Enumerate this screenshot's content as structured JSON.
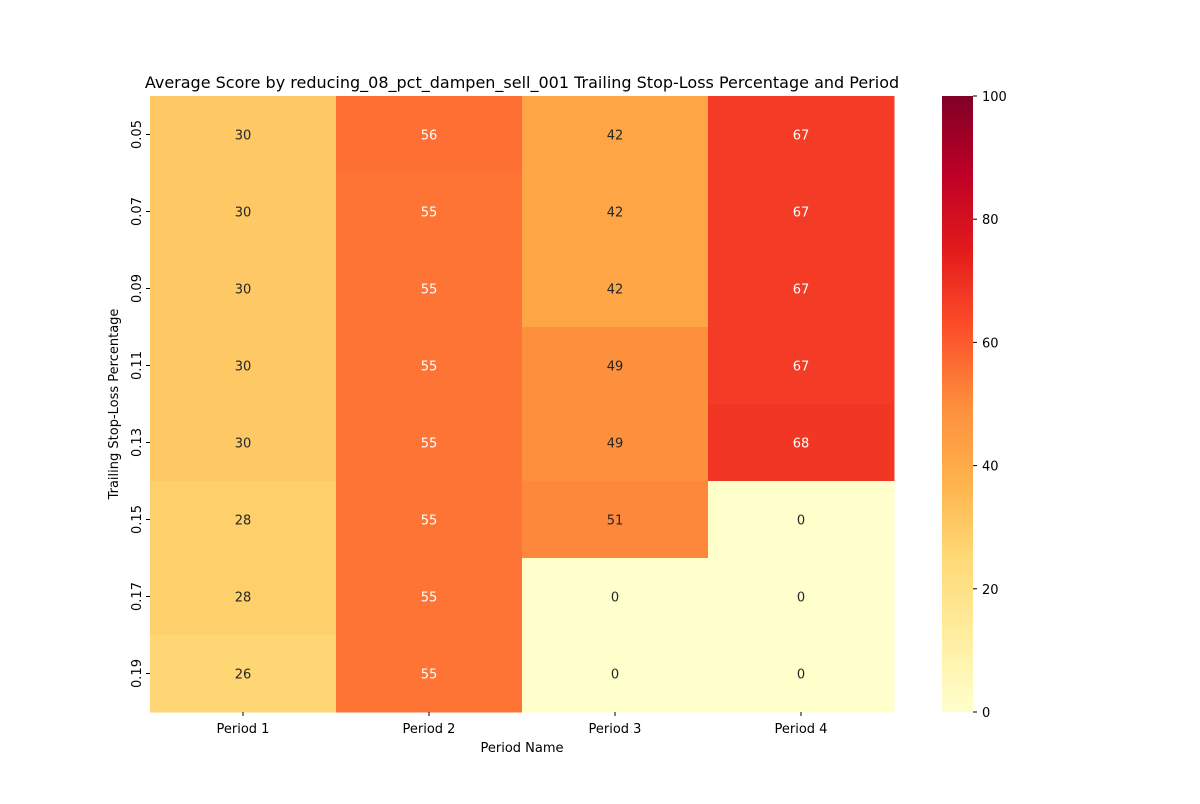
{
  "chart_data": {
    "type": "heatmap",
    "title": "Average Score by reducing_08_pct_dampen_sell_001 Trailing Stop-Loss Percentage and Period",
    "xlabel": "Period Name",
    "ylabel": "Trailing Stop-Loss Percentage",
    "x_categories": [
      "Period 1",
      "Period 2",
      "Period 3",
      "Period 4"
    ],
    "y_categories": [
      "0.05",
      "0.07",
      "0.09",
      "0.11",
      "0.13",
      "0.15",
      "0.17",
      "0.19"
    ],
    "values": [
      [
        30,
        56,
        42,
        67
      ],
      [
        30,
        55,
        42,
        67
      ],
      [
        30,
        55,
        42,
        67
      ],
      [
        30,
        55,
        49,
        67
      ],
      [
        30,
        55,
        49,
        68
      ],
      [
        28,
        55,
        51,
        0
      ],
      [
        28,
        55,
        0,
        0
      ],
      [
        26,
        55,
        0,
        0
      ]
    ],
    "colormap": "YlOrRd",
    "colormap_stops": [
      "#ffffcc",
      "#ffeda0",
      "#fed976",
      "#feb24c",
      "#fd8d3c",
      "#fc4e2a",
      "#e31a1c",
      "#bd0026",
      "#800026"
    ],
    "colorbar": {
      "range": [
        0,
        100
      ],
      "ticks": [
        "0",
        "20",
        "40",
        "60",
        "80",
        "100"
      ]
    },
    "annotated": true
  }
}
